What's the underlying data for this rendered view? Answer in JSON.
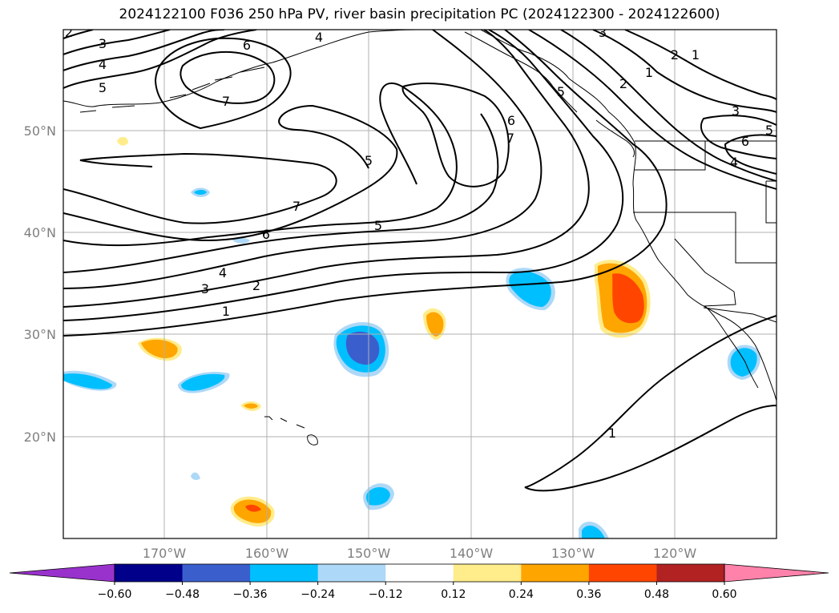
{
  "title": "2024122100 F036 250 hPa PV, river basin precipitation PC (2024122300 - 2024122600)",
  "lat_labels": [
    "50°N",
    "40°N",
    "30°N",
    "20°N"
  ],
  "lon_labels": [
    "170°W",
    "160°W",
    "150°W",
    "140°W",
    "130°W",
    "120°W"
  ],
  "pv_contour_labels": [
    "2",
    "3",
    "4",
    "5",
    "6",
    "7",
    "4",
    "7",
    "5",
    "6",
    "5",
    "6",
    "7",
    "5",
    "4",
    "3",
    "2",
    "1",
    "3",
    "2",
    "1",
    "2",
    "1",
    "3",
    "5",
    "6",
    "4",
    "1"
  ],
  "colorbar": {
    "ticks": [
      "−0.60",
      "−0.48",
      "−0.36",
      "−0.24",
      "−0.12",
      "0.12",
      "0.24",
      "0.36",
      "0.48",
      "0.60"
    ],
    "colors": [
      "#9932cc",
      "#00008b",
      "#3a5fcd",
      "#00bfff",
      "#add8f7",
      "#ffffff",
      "#ffec8b",
      "#ffa500",
      "#ff4500",
      "#b22222",
      "#ff82ab"
    ]
  },
  "colors": {
    "negative_strong": "#3a5fcd",
    "negative": "#00bfff",
    "negative_weak": "#add8f7",
    "positive_weak": "#ffec8b",
    "positive": "#ffa500",
    "positive_strong": "#ff4500"
  }
}
